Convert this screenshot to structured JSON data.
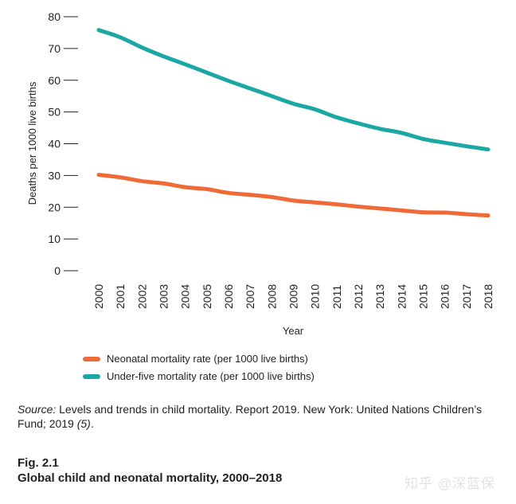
{
  "chart_data": {
    "type": "line",
    "title": "Global child and neonatal mortality, 2000–2018",
    "xlabel": "Year",
    "ylabel": "Deaths per 1000 live births",
    "ylim": [
      0,
      80
    ],
    "yticks": [
      0,
      10,
      20,
      30,
      40,
      50,
      60,
      70,
      80
    ],
    "grid": false,
    "legend_position": "bottom-left",
    "x": [
      "2000",
      "2001",
      "2002",
      "2003",
      "2004",
      "2005",
      "2006",
      "2007",
      "2008",
      "2009",
      "2010",
      "2011",
      "2012",
      "2013",
      "2014",
      "2015",
      "2016",
      "2017",
      "2018"
    ],
    "series": [
      {
        "name": "Neonatal mortality rate (per 1000 live births)",
        "color": "#ef6a36",
        "values": [
          30.2,
          29.4,
          28.2,
          27.5,
          26.3,
          25.7,
          24.5,
          23.9,
          23.2,
          22.1,
          21.5,
          20.9,
          20.2,
          19.6,
          19.0,
          18.4,
          18.3,
          17.8,
          17.4
        ]
      },
      {
        "name": "Under-five mortality rate (per 1000 live births)",
        "color": "#1ba7a3",
        "values": [
          75.8,
          73.5,
          70.3,
          67.5,
          65.0,
          62.4,
          59.8,
          57.4,
          55.0,
          52.6,
          50.8,
          48.3,
          46.4,
          44.7,
          43.4,
          41.5,
          40.3,
          39.2,
          38.2
        ]
      }
    ]
  },
  "caption": {
    "source_label": "Source:",
    "source_text": " Levels and trends in child mortality. Report 2019. New York: United Nations Children’s Fund; 2019 ",
    "source_ref": "(5)",
    "source_end": ".",
    "fig_number": "Fig. 2.1",
    "fig_title": "Global child and neonatal mortality, 2000–2018"
  },
  "watermark": "知乎 @深蓝保"
}
